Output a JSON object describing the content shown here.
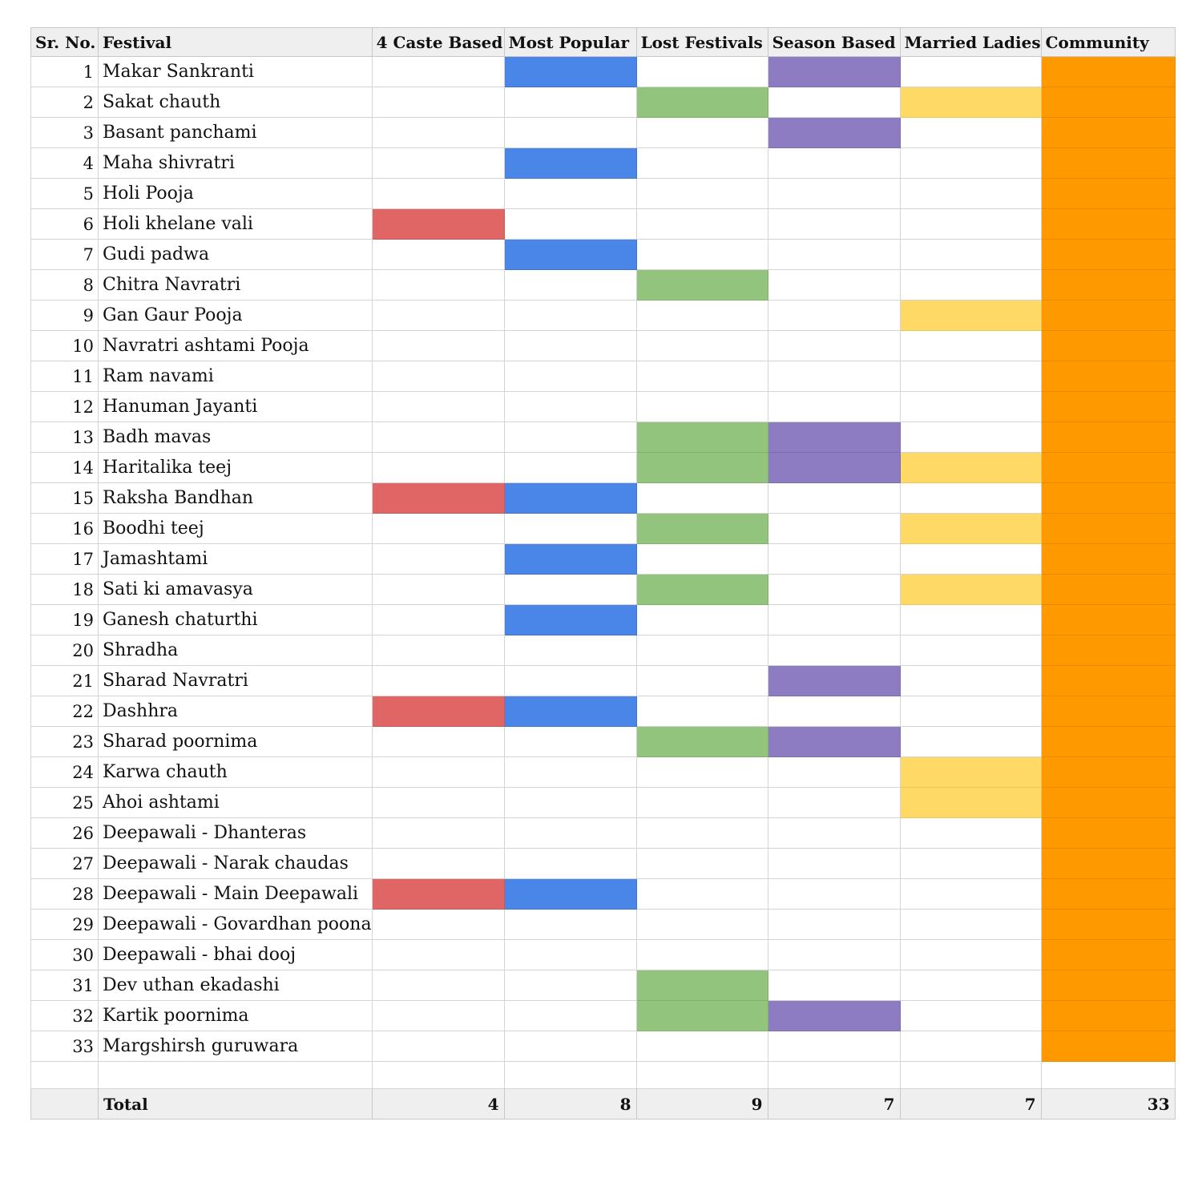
{
  "table": {
    "headers": {
      "sr": "Sr. No.",
      "festival": "Festival",
      "caste": "4 Caste Based",
      "popular": "Most Popular",
      "lost": "Lost Festivals",
      "season": "Season Based",
      "ladies": "Married Ladies",
      "community": "Community"
    },
    "colors": {
      "caste": "#e06666",
      "popular": "#4a86e8",
      "lost": "#93c47d",
      "season": "#8e7cc3",
      "ladies": "#ffd966",
      "community": "#ff9900"
    },
    "rows": [
      {
        "sr": "1",
        "festival": "Makar Sankranti",
        "caste": false,
        "popular": true,
        "lost": false,
        "season": true,
        "ladies": false,
        "community": true
      },
      {
        "sr": "2",
        "festival": "Sakat chauth",
        "caste": false,
        "popular": false,
        "lost": true,
        "season": false,
        "ladies": true,
        "community": true
      },
      {
        "sr": "3",
        "festival": "Basant panchami",
        "caste": false,
        "popular": false,
        "lost": false,
        "season": true,
        "ladies": false,
        "community": true
      },
      {
        "sr": "4",
        "festival": "Maha shivratri",
        "caste": false,
        "popular": true,
        "lost": false,
        "season": false,
        "ladies": false,
        "community": true
      },
      {
        "sr": "5",
        "festival": "Holi Pooja",
        "caste": false,
        "popular": false,
        "lost": false,
        "season": false,
        "ladies": false,
        "community": true
      },
      {
        "sr": "6",
        "festival": "Holi khelane vali",
        "caste": true,
        "popular": false,
        "lost": false,
        "season": false,
        "ladies": false,
        "community": true
      },
      {
        "sr": "7",
        "festival": "Gudi padwa",
        "caste": false,
        "popular": true,
        "lost": false,
        "season": false,
        "ladies": false,
        "community": true
      },
      {
        "sr": "8",
        "festival": "Chitra Navratri",
        "caste": false,
        "popular": false,
        "lost": true,
        "season": false,
        "ladies": false,
        "community": true
      },
      {
        "sr": "9",
        "festival": "Gan Gaur Pooja",
        "caste": false,
        "popular": false,
        "lost": false,
        "season": false,
        "ladies": true,
        "community": true
      },
      {
        "sr": "10",
        "festival": "Navratri ashtami Pooja",
        "caste": false,
        "popular": false,
        "lost": false,
        "season": false,
        "ladies": false,
        "community": true
      },
      {
        "sr": "11",
        "festival": "Ram navami",
        "caste": false,
        "popular": false,
        "lost": false,
        "season": false,
        "ladies": false,
        "community": true
      },
      {
        "sr": "12",
        "festival": "Hanuman Jayanti",
        "caste": false,
        "popular": false,
        "lost": false,
        "season": false,
        "ladies": false,
        "community": true
      },
      {
        "sr": "13",
        "festival": "Badh mavas",
        "caste": false,
        "popular": false,
        "lost": true,
        "season": true,
        "ladies": false,
        "community": true
      },
      {
        "sr": "14",
        "festival": "Haritalika teej",
        "caste": false,
        "popular": false,
        "lost": true,
        "season": true,
        "ladies": true,
        "community": true
      },
      {
        "sr": "15",
        "festival": "Raksha Bandhan",
        "caste": true,
        "popular": true,
        "lost": false,
        "season": false,
        "ladies": false,
        "community": true
      },
      {
        "sr": "16",
        "festival": "Boodhi teej",
        "caste": false,
        "popular": false,
        "lost": true,
        "season": false,
        "ladies": true,
        "community": true
      },
      {
        "sr": "17",
        "festival": "Jamashtami",
        "caste": false,
        "popular": true,
        "lost": false,
        "season": false,
        "ladies": false,
        "community": true
      },
      {
        "sr": "18",
        "festival": "Sati ki amavasya",
        "caste": false,
        "popular": false,
        "lost": true,
        "season": false,
        "ladies": true,
        "community": true
      },
      {
        "sr": "19",
        "festival": "Ganesh chaturthi",
        "caste": false,
        "popular": true,
        "lost": false,
        "season": false,
        "ladies": false,
        "community": true
      },
      {
        "sr": "20",
        "festival": "Shradha",
        "caste": false,
        "popular": false,
        "lost": false,
        "season": false,
        "ladies": false,
        "community": true
      },
      {
        "sr": "21",
        "festival": "Sharad Navratri",
        "caste": false,
        "popular": false,
        "lost": false,
        "season": true,
        "ladies": false,
        "community": true
      },
      {
        "sr": "22",
        "festival": "Dashhra",
        "caste": true,
        "popular": true,
        "lost": false,
        "season": false,
        "ladies": false,
        "community": true
      },
      {
        "sr": "23",
        "festival": "Sharad poornima",
        "caste": false,
        "popular": false,
        "lost": true,
        "season": true,
        "ladies": false,
        "community": true
      },
      {
        "sr": "24",
        "festival": "Karwa chauth",
        "caste": false,
        "popular": false,
        "lost": false,
        "season": false,
        "ladies": true,
        "community": true
      },
      {
        "sr": "25",
        "festival": "Ahoi ashtami",
        "caste": false,
        "popular": false,
        "lost": false,
        "season": false,
        "ladies": true,
        "community": true
      },
      {
        "sr": "26",
        "festival": "Deepawali - Dhanteras",
        "caste": false,
        "popular": false,
        "lost": false,
        "season": false,
        "ladies": false,
        "community": true
      },
      {
        "sr": "27",
        "festival": "Deepawali - Narak chaudas",
        "caste": false,
        "popular": false,
        "lost": false,
        "season": false,
        "ladies": false,
        "community": true
      },
      {
        "sr": "28",
        "festival": "Deepawali - Main Deepawali",
        "caste": true,
        "popular": true,
        "lost": false,
        "season": false,
        "ladies": false,
        "community": true
      },
      {
        "sr": "29",
        "festival": "Deepawali - Govardhan poona",
        "caste": false,
        "popular": false,
        "lost": false,
        "season": false,
        "ladies": false,
        "community": true
      },
      {
        "sr": "30",
        "festival": "Deepawali - bhai dooj",
        "caste": false,
        "popular": false,
        "lost": false,
        "season": false,
        "ladies": false,
        "community": true
      },
      {
        "sr": "31",
        "festival": "Dev uthan ekadashi",
        "caste": false,
        "popular": false,
        "lost": true,
        "season": false,
        "ladies": false,
        "community": true
      },
      {
        "sr": "32",
        "festival": "Kartik poornima",
        "caste": false,
        "popular": false,
        "lost": true,
        "season": true,
        "ladies": false,
        "community": true
      },
      {
        "sr": "33",
        "festival": "Margshirsh guruwara",
        "caste": false,
        "popular": false,
        "lost": false,
        "season": false,
        "ladies": false,
        "community": true
      }
    ],
    "total": {
      "label": "Total",
      "caste": "4",
      "popular": "8",
      "lost": "9",
      "season": "7",
      "ladies": "7",
      "community": "33"
    }
  }
}
